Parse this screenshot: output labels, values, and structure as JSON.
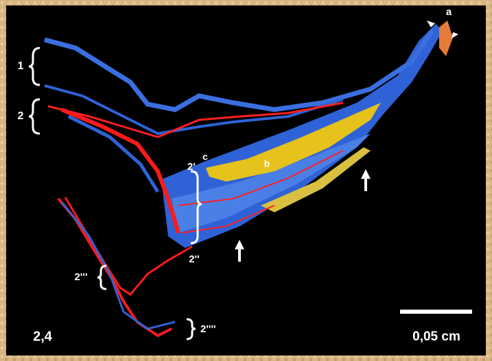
{
  "labels": {
    "bracket_1": "1",
    "bracket_2": "2",
    "bracket_2p": "2'",
    "bracket_2pp": "2''",
    "bracket_2ppp": "2'''",
    "bracket_2pppp": "2''''",
    "marker_a": "a",
    "marker_b": "b",
    "marker_c": "c",
    "panel": "2,4",
    "scale_bar": "0,05 cm"
  }
}
